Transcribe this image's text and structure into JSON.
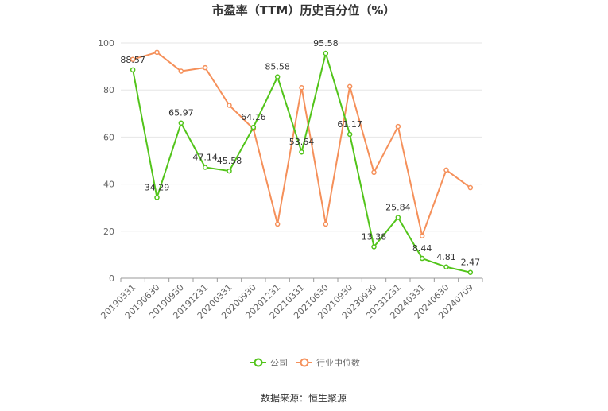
{
  "chart_data": {
    "type": "line",
    "title": "市盈率（TTM）历史百分位（%）",
    "categories": [
      "20190331",
      "20190630",
      "20190930",
      "20191231",
      "20200331",
      "20200930",
      "20201231",
      "20210331",
      "20210630",
      "20210930",
      "20230930",
      "20231231",
      "20240331",
      "20240630",
      "20240709"
    ],
    "series": [
      {
        "name": "公司",
        "color": "#52c41a",
        "values": [
          88.57,
          34.29,
          65.97,
          47.14,
          45.58,
          64.16,
          85.58,
          53.64,
          95.58,
          61.17,
          13.38,
          25.84,
          8.44,
          4.81,
          2.47
        ],
        "labels": [
          "88.57",
          "34.29",
          "65.97",
          "47.14",
          "45.58",
          "64.16",
          "85.58",
          "53.64",
          "95.58",
          "61.17",
          "13.38",
          "25.84",
          "8.44",
          "4.81",
          "2.47"
        ]
      },
      {
        "name": "行业中位数",
        "color": "#f5905a",
        "values": [
          93,
          96,
          88,
          89.5,
          73.5,
          63.5,
          23,
          81,
          23,
          81.5,
          45,
          64.5,
          18,
          46,
          38.5
        ]
      }
    ],
    "ylim": [
      0,
      100
    ],
    "yticks": [
      0,
      20,
      40,
      60,
      80,
      100
    ],
    "grid": true,
    "legend": "bottom"
  },
  "source": "数据来源：恒生聚源"
}
